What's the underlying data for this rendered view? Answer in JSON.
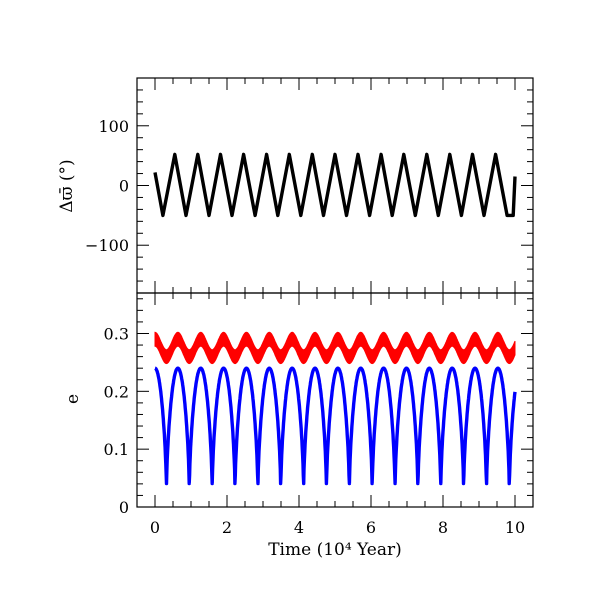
{
  "chart_data": [
    {
      "type": "line",
      "ylabel": "Δϖ̄ (°)",
      "xlim": [
        -0.5,
        10.5
      ],
      "ylim": [
        -180,
        180
      ],
      "yticks": [
        "100",
        "0",
        "−100"
      ],
      "ytick_values": [
        100,
        0,
        -100
      ],
      "grid": false,
      "series": [
        {
          "color": "#000000",
          "shape": "sawtooth",
          "period": 0.635,
          "x": [
            0.0,
            0.22,
            0.55,
            0.86,
            1.19,
            1.5,
            1.82,
            2.14,
            2.46,
            2.78,
            3.1,
            3.41,
            3.73,
            4.05,
            4.37,
            4.68,
            5.0,
            5.32,
            5.64,
            5.96,
            6.28,
            6.59,
            6.91,
            7.23,
            7.55,
            7.87,
            8.19,
            8.51,
            8.82,
            9.14,
            9.46,
            9.78,
            9.95,
            10.0
          ],
          "values": [
            22,
            -50,
            52,
            -50,
            52,
            -50,
            52,
            -50,
            52,
            -50,
            52,
            -50,
            52,
            -50,
            52,
            -50,
            52,
            -50,
            52,
            -50,
            52,
            -50,
            52,
            -50,
            52,
            -50,
            52,
            -50,
            52,
            -50,
            52,
            -50,
            -50,
            15
          ]
        }
      ]
    },
    {
      "type": "line",
      "xlabel": "Time (10⁴ Year)",
      "ylabel": "e",
      "xlim": [
        -0.5,
        10.5
      ],
      "ylim": [
        0,
        0.37
      ],
      "xticks": [
        "0",
        "2",
        "4",
        "6",
        "8",
        "10"
      ],
      "xtick_values": [
        0,
        2,
        4,
        6,
        8,
        10
      ],
      "yticks": [
        "0",
        "0.1",
        "0.2",
        "0.3"
      ],
      "ytick_values": [
        0,
        0.1,
        0.2,
        0.3
      ],
      "grid": false,
      "series": [
        {
          "color": "#ff0000",
          "period": 0.635,
          "mean": 0.275,
          "amplitude": 0.015,
          "band_halfwidth": 0.012
        },
        {
          "color": "#0000ff",
          "period": 0.635,
          "max": 0.24,
          "min": 0.025
        }
      ]
    }
  ]
}
